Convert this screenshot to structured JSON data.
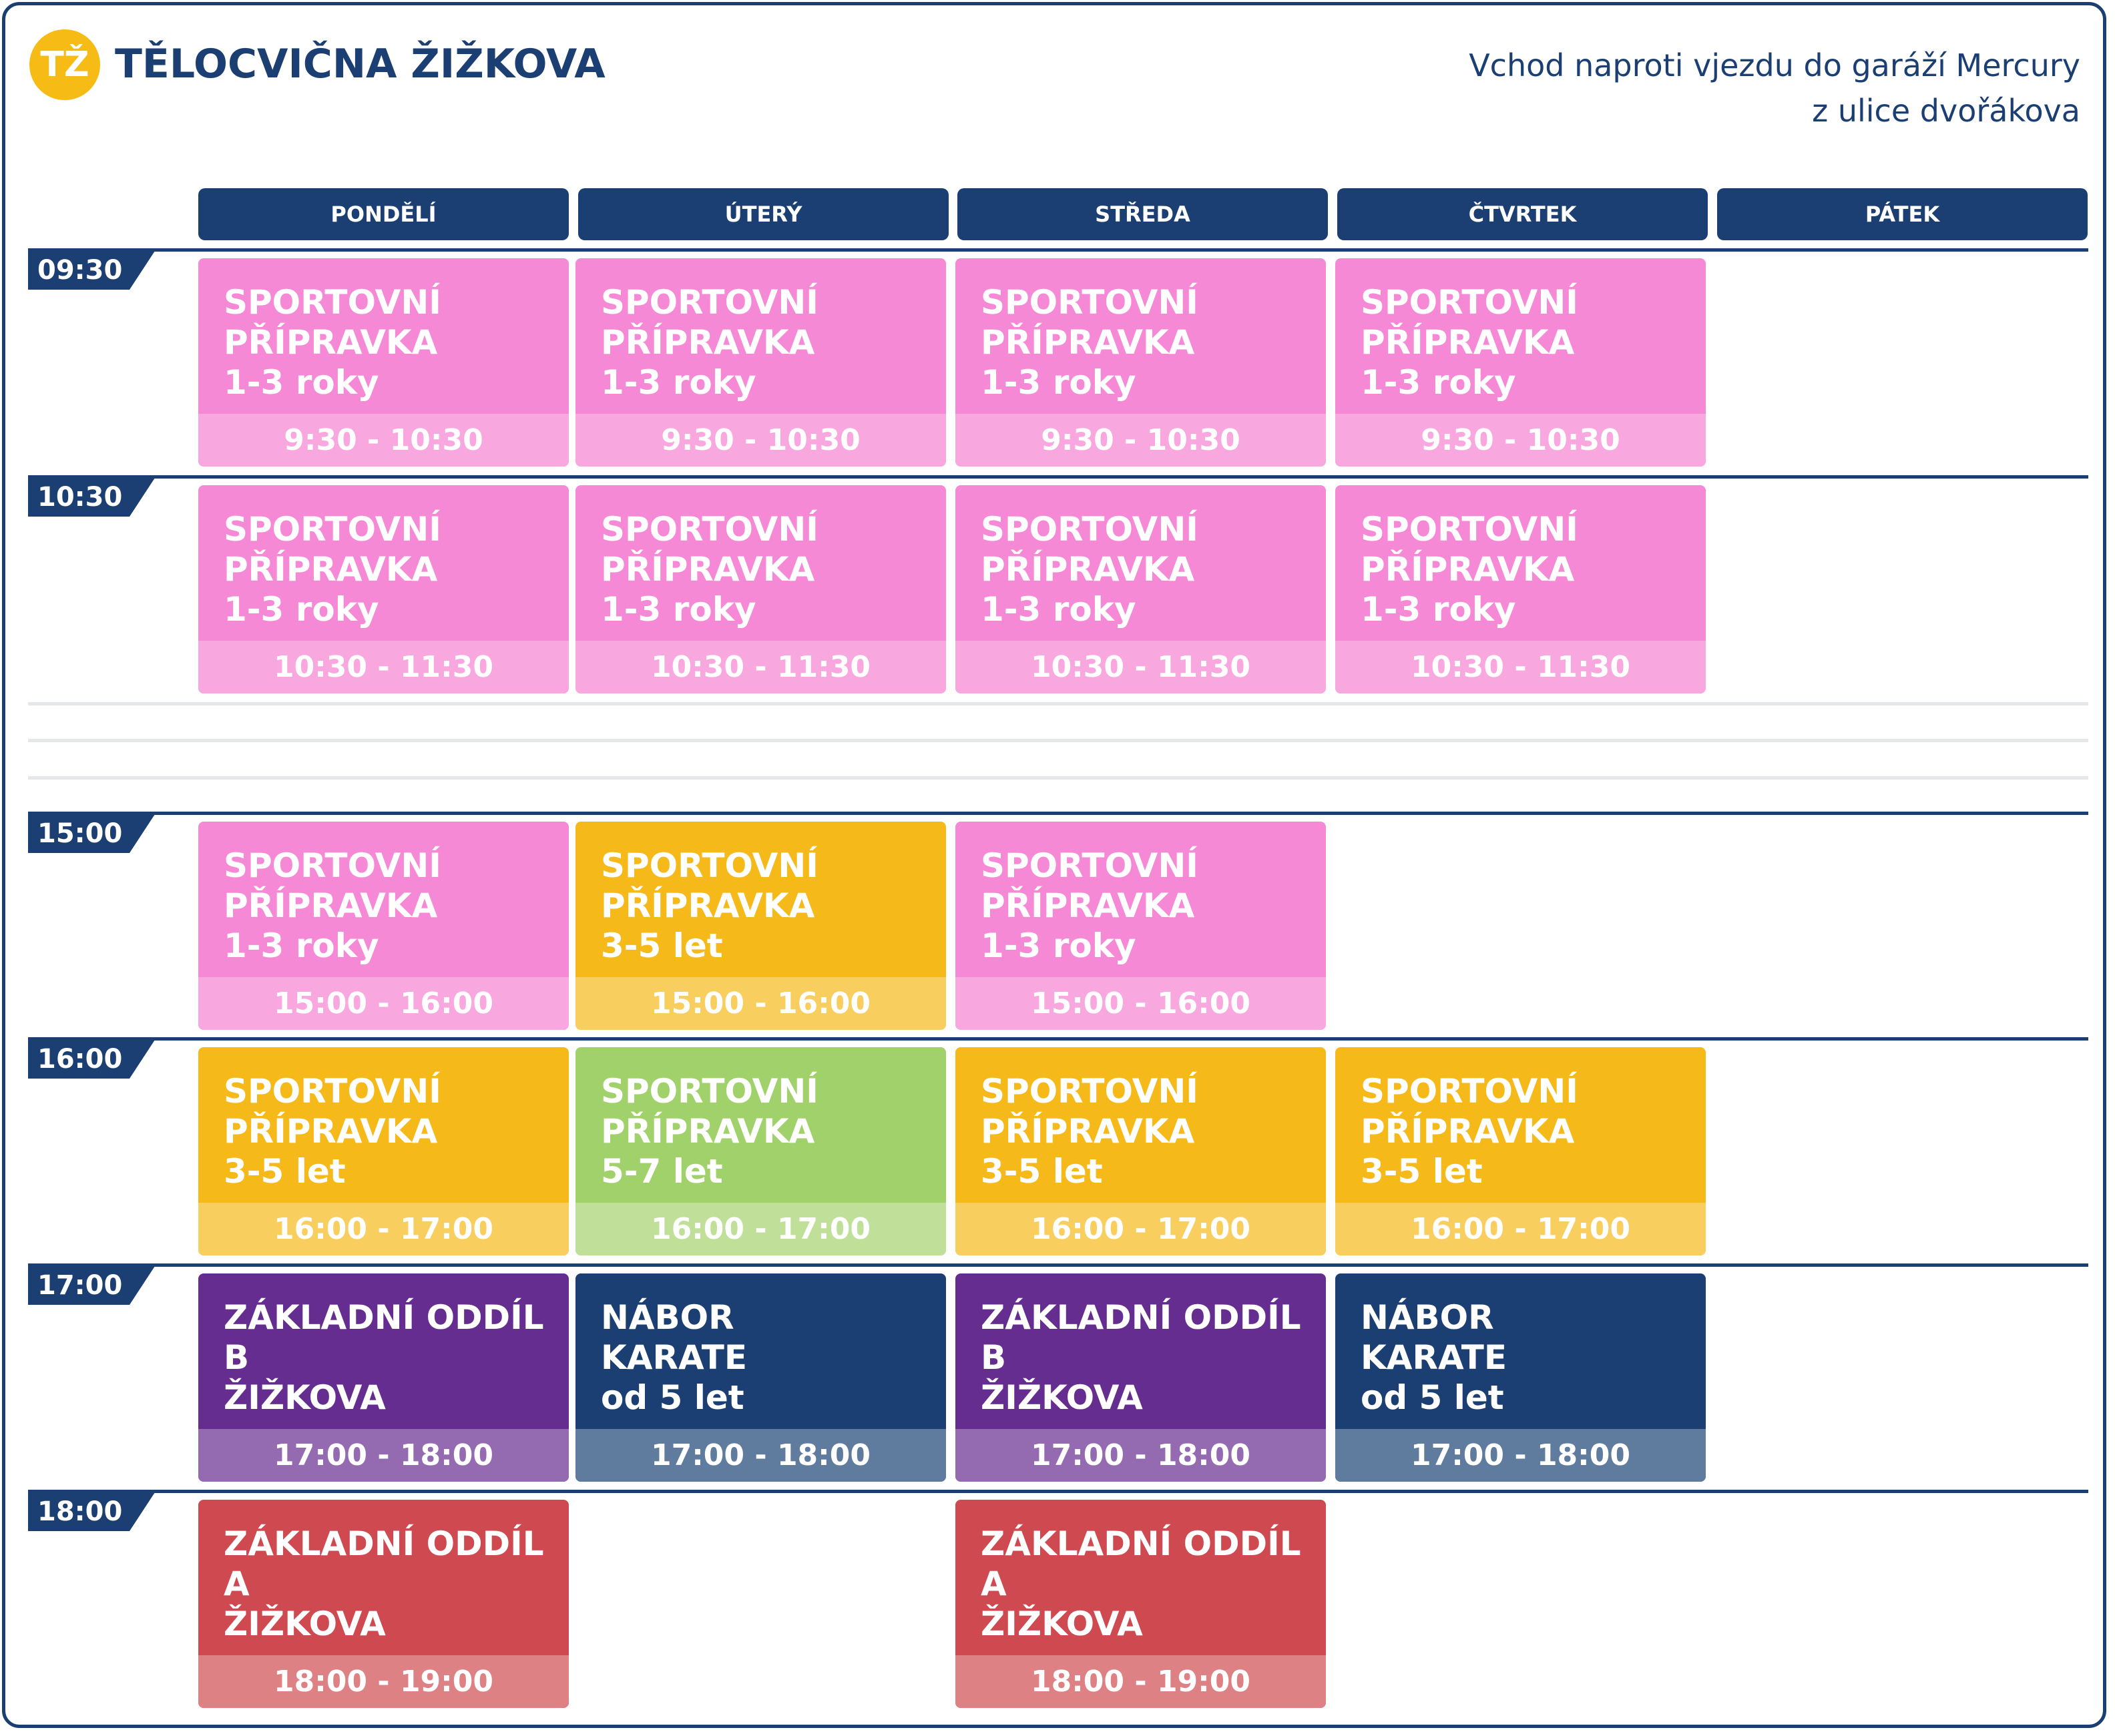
{
  "header": {
    "logo_text": "TŽ",
    "title": "TĚLOCVIČNA ŽIŽKOVA",
    "subtitle_line1": "Vchod naproti vjezdu do garáží Mercury",
    "subtitle_line2": "z ulice dvořákova"
  },
  "days": [
    "PONDĚLÍ",
    "ÚTERÝ",
    "STŘEDA",
    "ČTVRTEK",
    "PÁTEK"
  ],
  "times": [
    "09:30",
    "10:30",
    "15:00",
    "16:00",
    "17:00",
    "18:00"
  ],
  "colors": {
    "navy": "#1b3f72",
    "pink": "#f689d5",
    "yellow": "#f6b91a",
    "green": "#a1d16a",
    "purple": "#662d91",
    "red": "#cf4a50",
    "logo": "#f7bb15"
  },
  "rows": [
    [
      {
        "name": "SPORTOVNÍ\nPŘÍPRAVKA\n1-3 roky",
        "time": "9:30 - 10:30",
        "color": "pink"
      },
      {
        "name": "SPORTOVNÍ\nPŘÍPRAVKA\n1-3 roky",
        "time": "9:30 - 10:30",
        "color": "pink"
      },
      {
        "name": "SPORTOVNÍ\nPŘÍPRAVKA\n1-3 roky",
        "time": "9:30 - 10:30",
        "color": "pink"
      },
      {
        "name": "SPORTOVNÍ\nPŘÍPRAVKA\n1-3 roky",
        "time": "9:30 - 10:30",
        "color": "pink"
      }
    ],
    [
      {
        "name": "SPORTOVNÍ\nPŘÍPRAVKA\n1-3 roky",
        "time": "10:30 - 11:30",
        "color": "pink"
      },
      {
        "name": "SPORTOVNÍ\nPŘÍPRAVKA\n1-3 roky",
        "time": "10:30 - 11:30",
        "color": "pink"
      },
      {
        "name": "SPORTOVNÍ\nPŘÍPRAVKA\n1-3 roky",
        "time": "10:30 - 11:30",
        "color": "pink"
      },
      {
        "name": "SPORTOVNÍ\nPŘÍPRAVKA\n1-3 roky",
        "time": "10:30 - 11:30",
        "color": "pink"
      }
    ],
    [
      {
        "name": "SPORTOVNÍ\nPŘÍPRAVKA\n1-3 roky",
        "time": "15:00 - 16:00",
        "color": "pink"
      },
      {
        "name": "SPORTOVNÍ\nPŘÍPRAVKA\n3-5 let",
        "time": "15:00 - 16:00",
        "color": "yellow"
      },
      {
        "name": "SPORTOVNÍ\nPŘÍPRAVKA\n1-3 roky",
        "time": "15:00 - 16:00",
        "color": "pink"
      }
    ],
    [
      {
        "name": "SPORTOVNÍ\nPŘÍPRAVKA\n3-5 let",
        "time": "16:00 - 17:00",
        "color": "yellow"
      },
      {
        "name": "SPORTOVNÍ\nPŘÍPRAVKA\n5-7 let",
        "time": "16:00 - 17:00",
        "color": "green"
      },
      {
        "name": "SPORTOVNÍ\nPŘÍPRAVKA\n3-5 let",
        "time": "16:00 - 17:00",
        "color": "yellow"
      },
      {
        "name": "SPORTOVNÍ\nPŘÍPRAVKA\n3-5 let",
        "time": "16:00 - 17:00",
        "color": "yellow"
      }
    ],
    [
      {
        "name": "ZÁKLADNÍ ODDÍL B\nŽIŽKOVA",
        "time": "17:00 - 18:00",
        "color": "purple"
      },
      {
        "name": "NÁBOR\nKARATE\nod 5 let",
        "time": "17:00 - 18:00",
        "color": "navy"
      },
      {
        "name": "ZÁKLADNÍ ODDÍL B\nŽIŽKOVA",
        "time": "17:00 - 18:00",
        "color": "purple"
      },
      {
        "name": "NÁBOR\nKARATE\nod 5 let",
        "time": "17:00 - 18:00",
        "color": "navy"
      }
    ],
    [
      {
        "name": "ZÁKLADNÍ ODDÍL A\nŽIŽKOVA",
        "time": "18:00 - 19:00",
        "color": "red"
      },
      null,
      {
        "name": "ZÁKLADNÍ ODDÍL A\nŽIŽKOVA",
        "time": "18:00 - 19:00",
        "color": "red"
      }
    ]
  ]
}
